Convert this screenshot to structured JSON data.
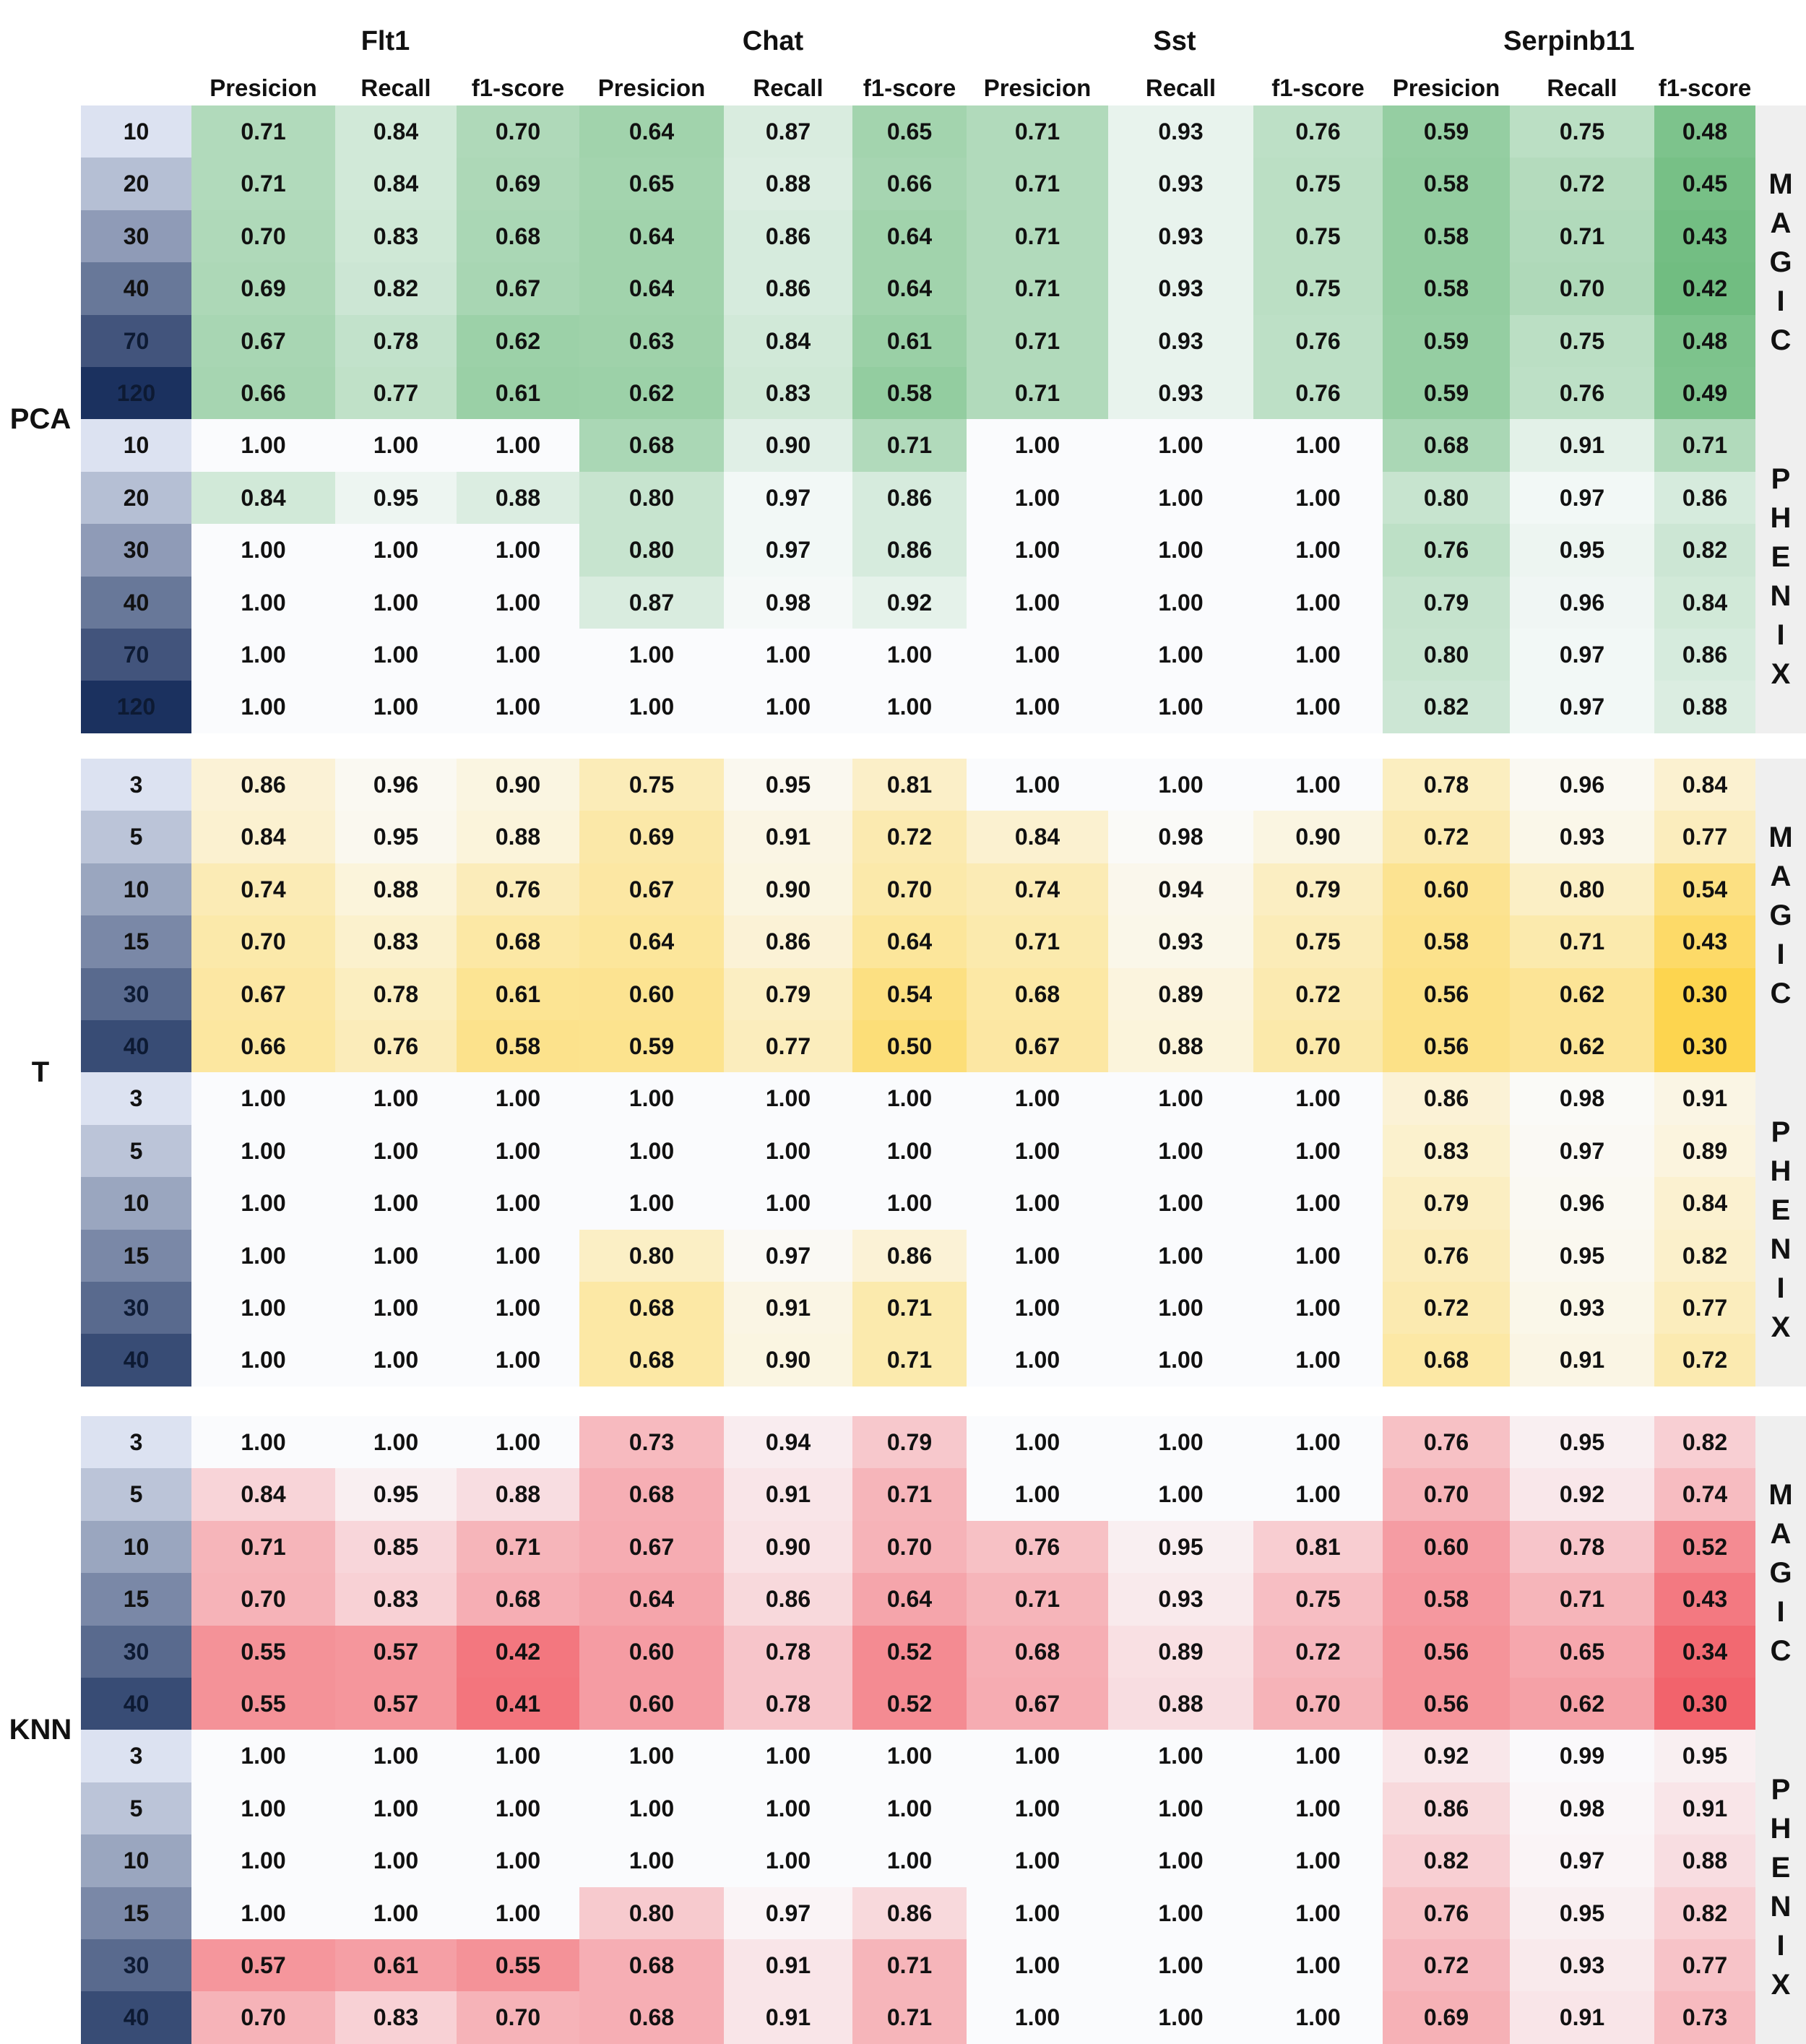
{
  "chart_data": {
    "type": "heatmap",
    "genes": [
      "Flt1",
      "Chat",
      "Sst",
      "Serpinb11"
    ],
    "metrics": [
      "Presicion",
      "Recall",
      "f1-score"
    ],
    "method_labels": [
      "MAGIC",
      "PHENIX"
    ],
    "panels": [
      {
        "label": "PCA",
        "theme": "green",
        "colors": {
          "low": "#5cb46e",
          "high": "#fafbfd"
        },
        "blocks": [
          {
            "method": "MAGIC",
            "row_labels": [
              "10",
              "20",
              "30",
              "40",
              "70",
              "120"
            ],
            "values": [
              [
                0.71,
                0.84,
                0.7,
                0.64,
                0.87,
                0.65,
                0.71,
                0.93,
                0.76,
                0.59,
                0.75,
                0.48
              ],
              [
                0.71,
                0.84,
                0.69,
                0.65,
                0.88,
                0.66,
                0.71,
                0.93,
                0.75,
                0.58,
                0.72,
                0.45
              ],
              [
                0.7,
                0.83,
                0.68,
                0.64,
                0.86,
                0.64,
                0.71,
                0.93,
                0.75,
                0.58,
                0.71,
                0.43
              ],
              [
                0.69,
                0.82,
                0.67,
                0.64,
                0.86,
                0.64,
                0.71,
                0.93,
                0.75,
                0.58,
                0.7,
                0.42
              ],
              [
                0.67,
                0.78,
                0.62,
                0.63,
                0.84,
                0.61,
                0.71,
                0.93,
                0.76,
                0.59,
                0.75,
                0.48
              ],
              [
                0.66,
                0.77,
                0.61,
                0.62,
                0.83,
                0.58,
                0.71,
                0.93,
                0.76,
                0.59,
                0.76,
                0.49
              ]
            ]
          },
          {
            "method": "PHENIX",
            "row_labels": [
              "10",
              "20",
              "30",
              "40",
              "70",
              "120"
            ],
            "values": [
              [
                1.0,
                1.0,
                1.0,
                0.68,
                0.9,
                0.71,
                1.0,
                1.0,
                1.0,
                0.68,
                0.91,
                0.71
              ],
              [
                0.84,
                0.95,
                0.88,
                0.8,
                0.97,
                0.86,
                1.0,
                1.0,
                1.0,
                0.8,
                0.97,
                0.86
              ],
              [
                1.0,
                1.0,
                1.0,
                0.8,
                0.97,
                0.86,
                1.0,
                1.0,
                1.0,
                0.76,
                0.95,
                0.82
              ],
              [
                1.0,
                1.0,
                1.0,
                0.87,
                0.98,
                0.92,
                1.0,
                1.0,
                1.0,
                0.79,
                0.96,
                0.84
              ],
              [
                1.0,
                1.0,
                1.0,
                1.0,
                1.0,
                1.0,
                1.0,
                1.0,
                1.0,
                0.8,
                0.97,
                0.86
              ],
              [
                1.0,
                1.0,
                1.0,
                1.0,
                1.0,
                1.0,
                1.0,
                1.0,
                1.0,
                0.82,
                0.97,
                0.88
              ]
            ]
          }
        ]
      },
      {
        "label": "T",
        "theme": "yellow",
        "colors": {
          "low": "#fdd54f",
          "high": "#fafbfd"
        },
        "blocks": [
          {
            "method": "MAGIC",
            "row_labels": [
              "3",
              "5",
              "10",
              "15",
              "30",
              "40"
            ],
            "values": [
              [
                0.86,
                0.96,
                0.9,
                0.75,
                0.95,
                0.81,
                1.0,
                1.0,
                1.0,
                0.78,
                0.96,
                0.84
              ],
              [
                0.84,
                0.95,
                0.88,
                0.69,
                0.91,
                0.72,
                0.84,
                0.98,
                0.9,
                0.72,
                0.93,
                0.77
              ],
              [
                0.74,
                0.88,
                0.76,
                0.67,
                0.9,
                0.7,
                0.74,
                0.94,
                0.79,
                0.6,
                0.8,
                0.54
              ],
              [
                0.7,
                0.83,
                0.68,
                0.64,
                0.86,
                0.64,
                0.71,
                0.93,
                0.75,
                0.58,
                0.71,
                0.43
              ],
              [
                0.67,
                0.78,
                0.61,
                0.6,
                0.79,
                0.54,
                0.68,
                0.89,
                0.72,
                0.56,
                0.62,
                0.3
              ],
              [
                0.66,
                0.76,
                0.58,
                0.59,
                0.77,
                0.5,
                0.67,
                0.88,
                0.7,
                0.56,
                0.62,
                0.3
              ]
            ]
          },
          {
            "method": "PHENIX",
            "row_labels": [
              "3",
              "5",
              "10",
              "15",
              "30",
              "40"
            ],
            "values": [
              [
                1.0,
                1.0,
                1.0,
                1.0,
                1.0,
                1.0,
                1.0,
                1.0,
                1.0,
                0.86,
                0.98,
                0.91
              ],
              [
                1.0,
                1.0,
                1.0,
                1.0,
                1.0,
                1.0,
                1.0,
                1.0,
                1.0,
                0.83,
                0.97,
                0.89
              ],
              [
                1.0,
                1.0,
                1.0,
                1.0,
                1.0,
                1.0,
                1.0,
                1.0,
                1.0,
                0.79,
                0.96,
                0.84
              ],
              [
                1.0,
                1.0,
                1.0,
                0.8,
                0.97,
                0.86,
                1.0,
                1.0,
                1.0,
                0.76,
                0.95,
                0.82
              ],
              [
                1.0,
                1.0,
                1.0,
                0.68,
                0.91,
                0.71,
                1.0,
                1.0,
                1.0,
                0.72,
                0.93,
                0.77
              ],
              [
                1.0,
                1.0,
                1.0,
                0.68,
                0.9,
                0.71,
                1.0,
                1.0,
                1.0,
                0.68,
                0.91,
                0.72
              ]
            ]
          }
        ]
      },
      {
        "label": "KNN",
        "theme": "red",
        "colors": {
          "low": "#f2636c",
          "high": "#fafbfd"
        },
        "blocks": [
          {
            "method": "MAGIC",
            "row_labels": [
              "3",
              "5",
              "10",
              "15",
              "30",
              "40"
            ],
            "values": [
              [
                1.0,
                1.0,
                1.0,
                0.73,
                0.94,
                0.79,
                1.0,
                1.0,
                1.0,
                0.76,
                0.95,
                0.82
              ],
              [
                0.84,
                0.95,
                0.88,
                0.68,
                0.91,
                0.71,
                1.0,
                1.0,
                1.0,
                0.7,
                0.92,
                0.74
              ],
              [
                0.71,
                0.85,
                0.71,
                0.67,
                0.9,
                0.7,
                0.76,
                0.95,
                0.81,
                0.6,
                0.78,
                0.52
              ],
              [
                0.7,
                0.83,
                0.68,
                0.64,
                0.86,
                0.64,
                0.71,
                0.93,
                0.75,
                0.58,
                0.71,
                0.43
              ],
              [
                0.55,
                0.57,
                0.42,
                0.6,
                0.78,
                0.52,
                0.68,
                0.89,
                0.72,
                0.56,
                0.65,
                0.34
              ],
              [
                0.55,
                0.57,
                0.41,
                0.6,
                0.78,
                0.52,
                0.67,
                0.88,
                0.7,
                0.56,
                0.62,
                0.3
              ]
            ]
          },
          {
            "method": "PHENIX",
            "row_labels": [
              "3",
              "5",
              "10",
              "15",
              "30",
              "40"
            ],
            "values": [
              [
                1.0,
                1.0,
                1.0,
                1.0,
                1.0,
                1.0,
                1.0,
                1.0,
                1.0,
                0.92,
                0.99,
                0.95
              ],
              [
                1.0,
                1.0,
                1.0,
                1.0,
                1.0,
                1.0,
                1.0,
                1.0,
                1.0,
                0.86,
                0.98,
                0.91
              ],
              [
                1.0,
                1.0,
                1.0,
                1.0,
                1.0,
                1.0,
                1.0,
                1.0,
                1.0,
                0.82,
                0.97,
                0.88
              ],
              [
                1.0,
                1.0,
                1.0,
                0.8,
                0.97,
                0.86,
                1.0,
                1.0,
                1.0,
                0.76,
                0.95,
                0.82
              ],
              [
                0.57,
                0.61,
                0.55,
                0.68,
                0.91,
                0.71,
                1.0,
                1.0,
                1.0,
                0.72,
                0.93,
                0.77
              ],
              [
                0.7,
                0.83,
                0.7,
                0.68,
                0.91,
                0.71,
                1.0,
                1.0,
                1.0,
                0.69,
                0.91,
                0.73
              ]
            ]
          }
        ]
      }
    ]
  }
}
